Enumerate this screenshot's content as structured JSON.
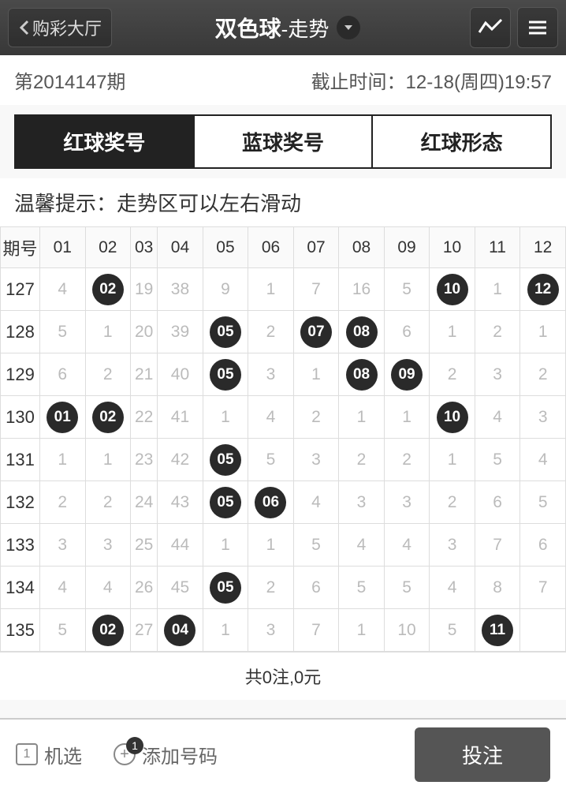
{
  "header": {
    "back_label": "购彩大厅",
    "title_main": "双色球",
    "title_sub": "-走势"
  },
  "info": {
    "issue": "第2014147期",
    "deadline": "截止时间：12-18(周四)19:57"
  },
  "tabs": [
    {
      "label": "红球奖号",
      "active": true
    },
    {
      "label": "蓝球奖号",
      "active": false
    },
    {
      "label": "红球形态",
      "active": false
    }
  ],
  "hint": "温馨提示：走势区可以左右滑动",
  "table": {
    "issue_header": "期号",
    "columns": [
      "01",
      "02",
      "03",
      "04",
      "05",
      "06",
      "07",
      "08",
      "09",
      "10",
      "11",
      "12"
    ],
    "rows": [
      {
        "issue": "127",
        "cells": [
          {
            "v": "4"
          },
          {
            "v": "02",
            "b": true
          },
          {
            "v": "19"
          },
          {
            "v": "38"
          },
          {
            "v": "9"
          },
          {
            "v": "1"
          },
          {
            "v": "7"
          },
          {
            "v": "16"
          },
          {
            "v": "5"
          },
          {
            "v": "10",
            "b": true
          },
          {
            "v": "1"
          },
          {
            "v": "12",
            "b": true
          }
        ]
      },
      {
        "issue": "128",
        "cells": [
          {
            "v": "5"
          },
          {
            "v": "1"
          },
          {
            "v": "20"
          },
          {
            "v": "39"
          },
          {
            "v": "05",
            "b": true
          },
          {
            "v": "2"
          },
          {
            "v": "07",
            "b": true
          },
          {
            "v": "08",
            "b": true
          },
          {
            "v": "6"
          },
          {
            "v": "1"
          },
          {
            "v": "2"
          },
          {
            "v": "1"
          }
        ]
      },
      {
        "issue": "129",
        "cells": [
          {
            "v": "6"
          },
          {
            "v": "2"
          },
          {
            "v": "21"
          },
          {
            "v": "40"
          },
          {
            "v": "05",
            "b": true
          },
          {
            "v": "3"
          },
          {
            "v": "1"
          },
          {
            "v": "08",
            "b": true
          },
          {
            "v": "09",
            "b": true
          },
          {
            "v": "2"
          },
          {
            "v": "3"
          },
          {
            "v": "2"
          }
        ]
      },
      {
        "issue": "130",
        "cells": [
          {
            "v": "01",
            "b": true
          },
          {
            "v": "02",
            "b": true
          },
          {
            "v": "22"
          },
          {
            "v": "41"
          },
          {
            "v": "1"
          },
          {
            "v": "4"
          },
          {
            "v": "2"
          },
          {
            "v": "1"
          },
          {
            "v": "1"
          },
          {
            "v": "10",
            "b": true
          },
          {
            "v": "4"
          },
          {
            "v": "3"
          }
        ]
      },
      {
        "issue": "131",
        "cells": [
          {
            "v": "1"
          },
          {
            "v": "1"
          },
          {
            "v": "23"
          },
          {
            "v": "42"
          },
          {
            "v": "05",
            "b": true
          },
          {
            "v": "5"
          },
          {
            "v": "3"
          },
          {
            "v": "2"
          },
          {
            "v": "2"
          },
          {
            "v": "1"
          },
          {
            "v": "5"
          },
          {
            "v": "4"
          }
        ]
      },
      {
        "issue": "132",
        "cells": [
          {
            "v": "2"
          },
          {
            "v": "2"
          },
          {
            "v": "24"
          },
          {
            "v": "43"
          },
          {
            "v": "05",
            "b": true
          },
          {
            "v": "06",
            "b": true
          },
          {
            "v": "4"
          },
          {
            "v": "3"
          },
          {
            "v": "3"
          },
          {
            "v": "2"
          },
          {
            "v": "6"
          },
          {
            "v": "5"
          }
        ]
      },
      {
        "issue": "133",
        "cells": [
          {
            "v": "3"
          },
          {
            "v": "3"
          },
          {
            "v": "25"
          },
          {
            "v": "44"
          },
          {
            "v": "1"
          },
          {
            "v": "1"
          },
          {
            "v": "5"
          },
          {
            "v": "4"
          },
          {
            "v": "4"
          },
          {
            "v": "3"
          },
          {
            "v": "7"
          },
          {
            "v": "6"
          }
        ]
      },
      {
        "issue": "134",
        "cells": [
          {
            "v": "4"
          },
          {
            "v": "4"
          },
          {
            "v": "26"
          },
          {
            "v": "45"
          },
          {
            "v": "05",
            "b": true
          },
          {
            "v": "2"
          },
          {
            "v": "6"
          },
          {
            "v": "5"
          },
          {
            "v": "5"
          },
          {
            "v": "4"
          },
          {
            "v": "8"
          },
          {
            "v": "7"
          }
        ]
      },
      {
        "issue": "135",
        "cells": [
          {
            "v": "5"
          },
          {
            "v": "02",
            "b": true
          },
          {
            "v": "27"
          },
          {
            "v": "04",
            "b": true
          },
          {
            "v": "1"
          },
          {
            "v": "3"
          },
          {
            "v": "7"
          },
          {
            "v": "1"
          },
          {
            "v": "10"
          },
          {
            "v": "5"
          },
          {
            "v": "11",
            "b": true
          },
          {
            "v": ""
          }
        ]
      }
    ]
  },
  "summary": "共0注,0元",
  "footer": {
    "random_label": "机选",
    "random_icon_text": "1",
    "add_label": "添加号码",
    "add_badge": "1",
    "bet_label": "投注"
  },
  "style": {
    "ball_color": "#2a2a2a",
    "header_bg": "#404040",
    "active_tab_bg": "#222222",
    "border_color": "#dddddd"
  }
}
